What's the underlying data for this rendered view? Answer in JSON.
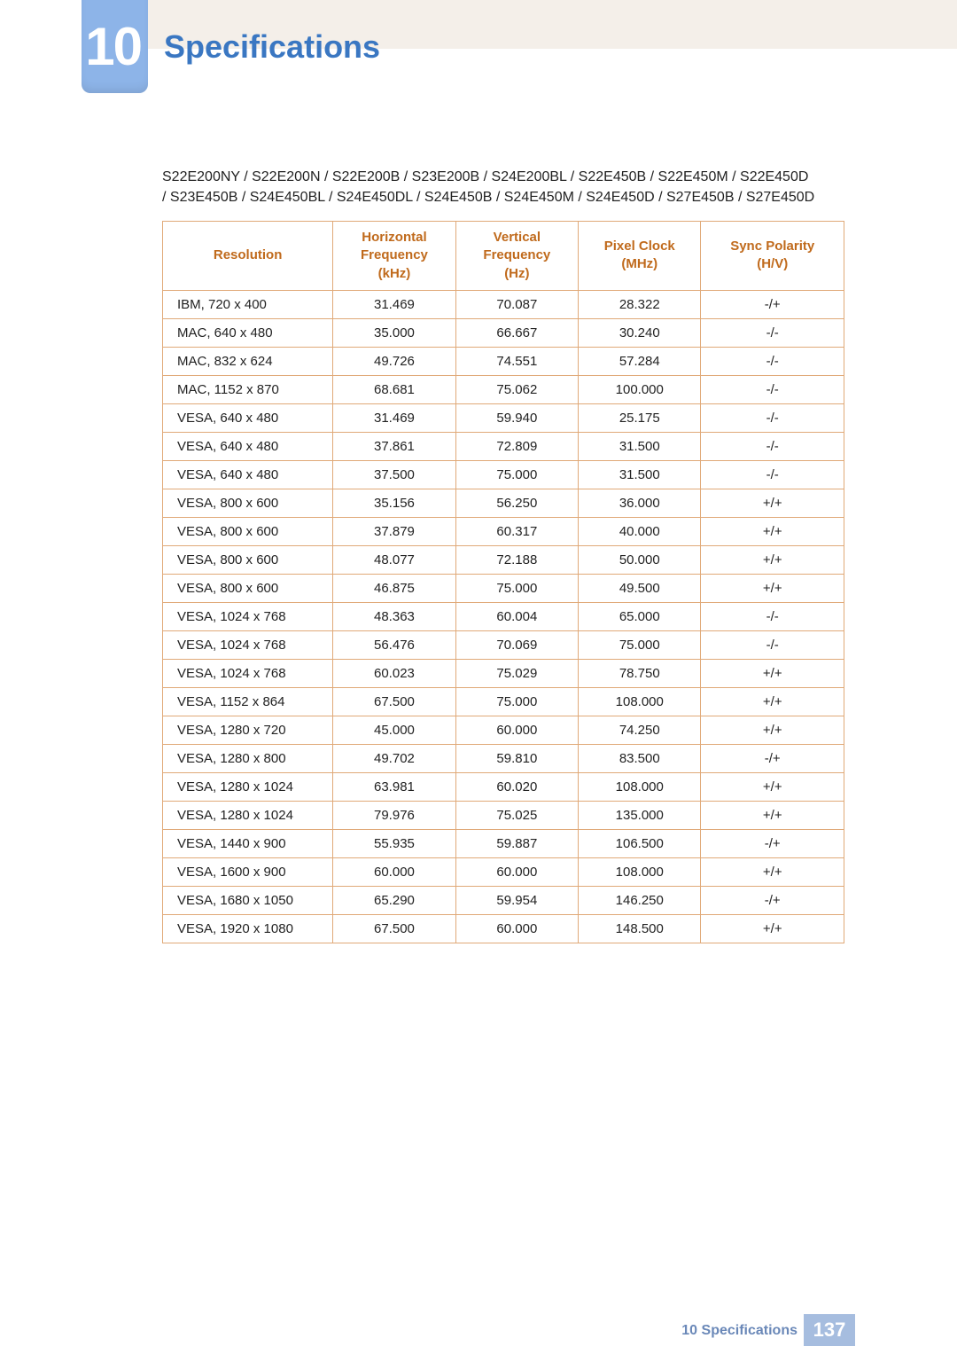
{
  "header": {
    "chapter_number": "10",
    "title": "Specifications",
    "title_color": "#3a77c2",
    "tab_color": "#8db4e8",
    "stripe_color": "#f4efe9"
  },
  "models_line1": "S22E200NY / S22E200N / S22E200B / S23E200B / S24E200BL / S22E450B / S22E450M / S22E450D",
  "models_line2": "/ S23E450B / S24E450BL / S24E450DL / S24E450B / S24E450M / S24E450D / S27E450B / S27E450D",
  "table": {
    "border_color": "#e0a978",
    "header_text_color": "#c06a1c",
    "columns": [
      {
        "label_l1": "Resolution",
        "label_l2": "",
        "label_l3": "",
        "width_pct": 25,
        "align": "left"
      },
      {
        "label_l1": "Horizontal",
        "label_l2": "Frequency",
        "label_l3": "(kHz)",
        "width_pct": 18,
        "align": "center"
      },
      {
        "label_l1": "Vertical",
        "label_l2": "Frequency",
        "label_l3": "(Hz)",
        "width_pct": 18,
        "align": "center"
      },
      {
        "label_l1": "Pixel Clock",
        "label_l2": "(MHz)",
        "label_l3": "",
        "width_pct": 18,
        "align": "center"
      },
      {
        "label_l1": "Sync Polarity",
        "label_l2": "(H/V)",
        "label_l3": "",
        "width_pct": 21,
        "align": "center"
      }
    ],
    "rows": [
      [
        "IBM, 720 x 400",
        "31.469",
        "70.087",
        "28.322",
        "-/+"
      ],
      [
        "MAC, 640 x 480",
        "35.000",
        "66.667",
        "30.240",
        "-/-"
      ],
      [
        "MAC, 832 x 624",
        "49.726",
        "74.551",
        "57.284",
        "-/-"
      ],
      [
        "MAC, 1152 x 870",
        "68.681",
        "75.062",
        "100.000",
        "-/-"
      ],
      [
        "VESA, 640 x 480",
        "31.469",
        "59.940",
        "25.175",
        "-/-"
      ],
      [
        "VESA, 640 x 480",
        "37.861",
        "72.809",
        "31.500",
        "-/-"
      ],
      [
        "VESA, 640 x 480",
        "37.500",
        "75.000",
        "31.500",
        "-/-"
      ],
      [
        "VESA, 800 x 600",
        "35.156",
        "56.250",
        "36.000",
        "+/+"
      ],
      [
        "VESA, 800 x 600",
        "37.879",
        "60.317",
        "40.000",
        "+/+"
      ],
      [
        "VESA, 800 x 600",
        "48.077",
        "72.188",
        "50.000",
        "+/+"
      ],
      [
        "VESA, 800 x 600",
        "46.875",
        "75.000",
        "49.500",
        "+/+"
      ],
      [
        "VESA, 1024 x 768",
        "48.363",
        "60.004",
        "65.000",
        "-/-"
      ],
      [
        "VESA, 1024 x 768",
        "56.476",
        "70.069",
        "75.000",
        "-/-"
      ],
      [
        "VESA, 1024 x 768",
        "60.023",
        "75.029",
        "78.750",
        "+/+"
      ],
      [
        "VESA, 1152 x 864",
        "67.500",
        "75.000",
        "108.000",
        "+/+"
      ],
      [
        "VESA, 1280 x 720",
        "45.000",
        "60.000",
        "74.250",
        "+/+"
      ],
      [
        "VESA, 1280 x 800",
        "49.702",
        "59.810",
        "83.500",
        "-/+"
      ],
      [
        "VESA, 1280 x 1024",
        "63.981",
        "60.020",
        "108.000",
        "+/+"
      ],
      [
        "VESA, 1280 x 1024",
        "79.976",
        "75.025",
        "135.000",
        "+/+"
      ],
      [
        "VESA, 1440 x 900",
        "55.935",
        "59.887",
        "106.500",
        "-/+"
      ],
      [
        "VESA, 1600 x 900",
        "60.000",
        "60.000",
        "108.000",
        "+/+"
      ],
      [
        "VESA, 1680 x 1050",
        "65.290",
        "59.954",
        "146.250",
        "-/+"
      ],
      [
        "VESA, 1920 x 1080",
        "67.500",
        "60.000",
        "148.500",
        "+/+"
      ]
    ]
  },
  "footer": {
    "label": "10 Specifications",
    "label_color": "#6a88b8",
    "page_number": "137",
    "badge_color": "#a6bddf"
  }
}
